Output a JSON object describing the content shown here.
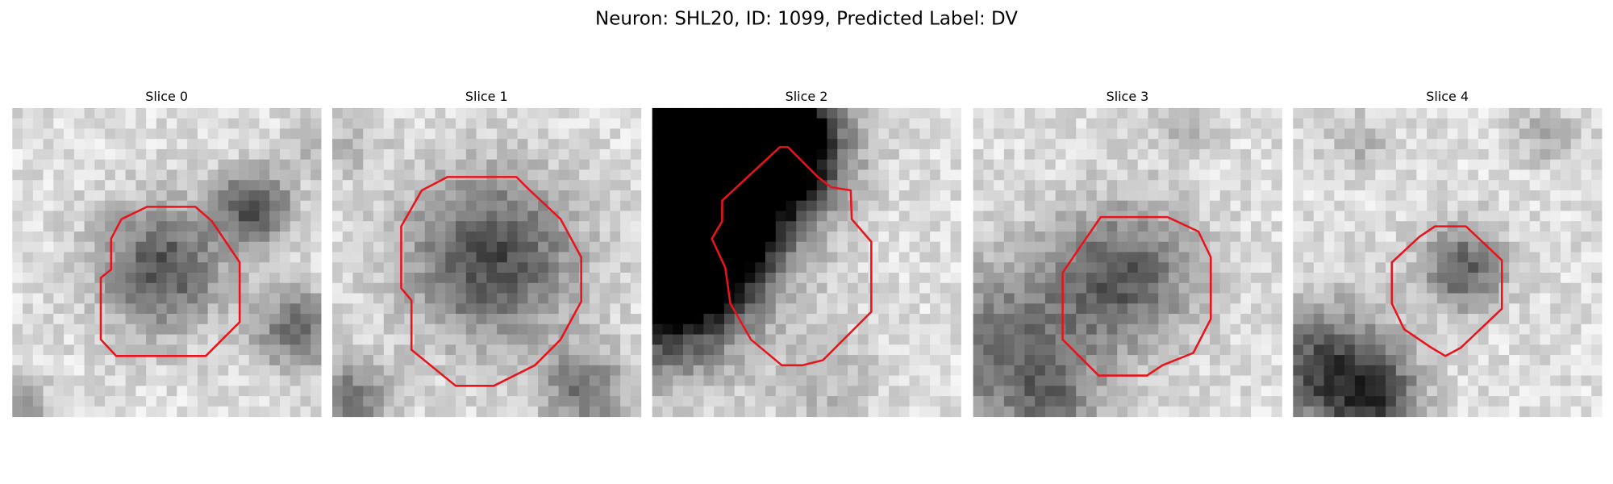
{
  "title": "Neuron: SHL20, ID: 1099, Predicted Label: DV",
  "panels": [
    {
      "title": "Slice 0"
    },
    {
      "title": "Slice 1"
    },
    {
      "title": "Slice 2"
    },
    {
      "title": "Slice 3"
    },
    {
      "title": "Slice 4"
    }
  ]
}
